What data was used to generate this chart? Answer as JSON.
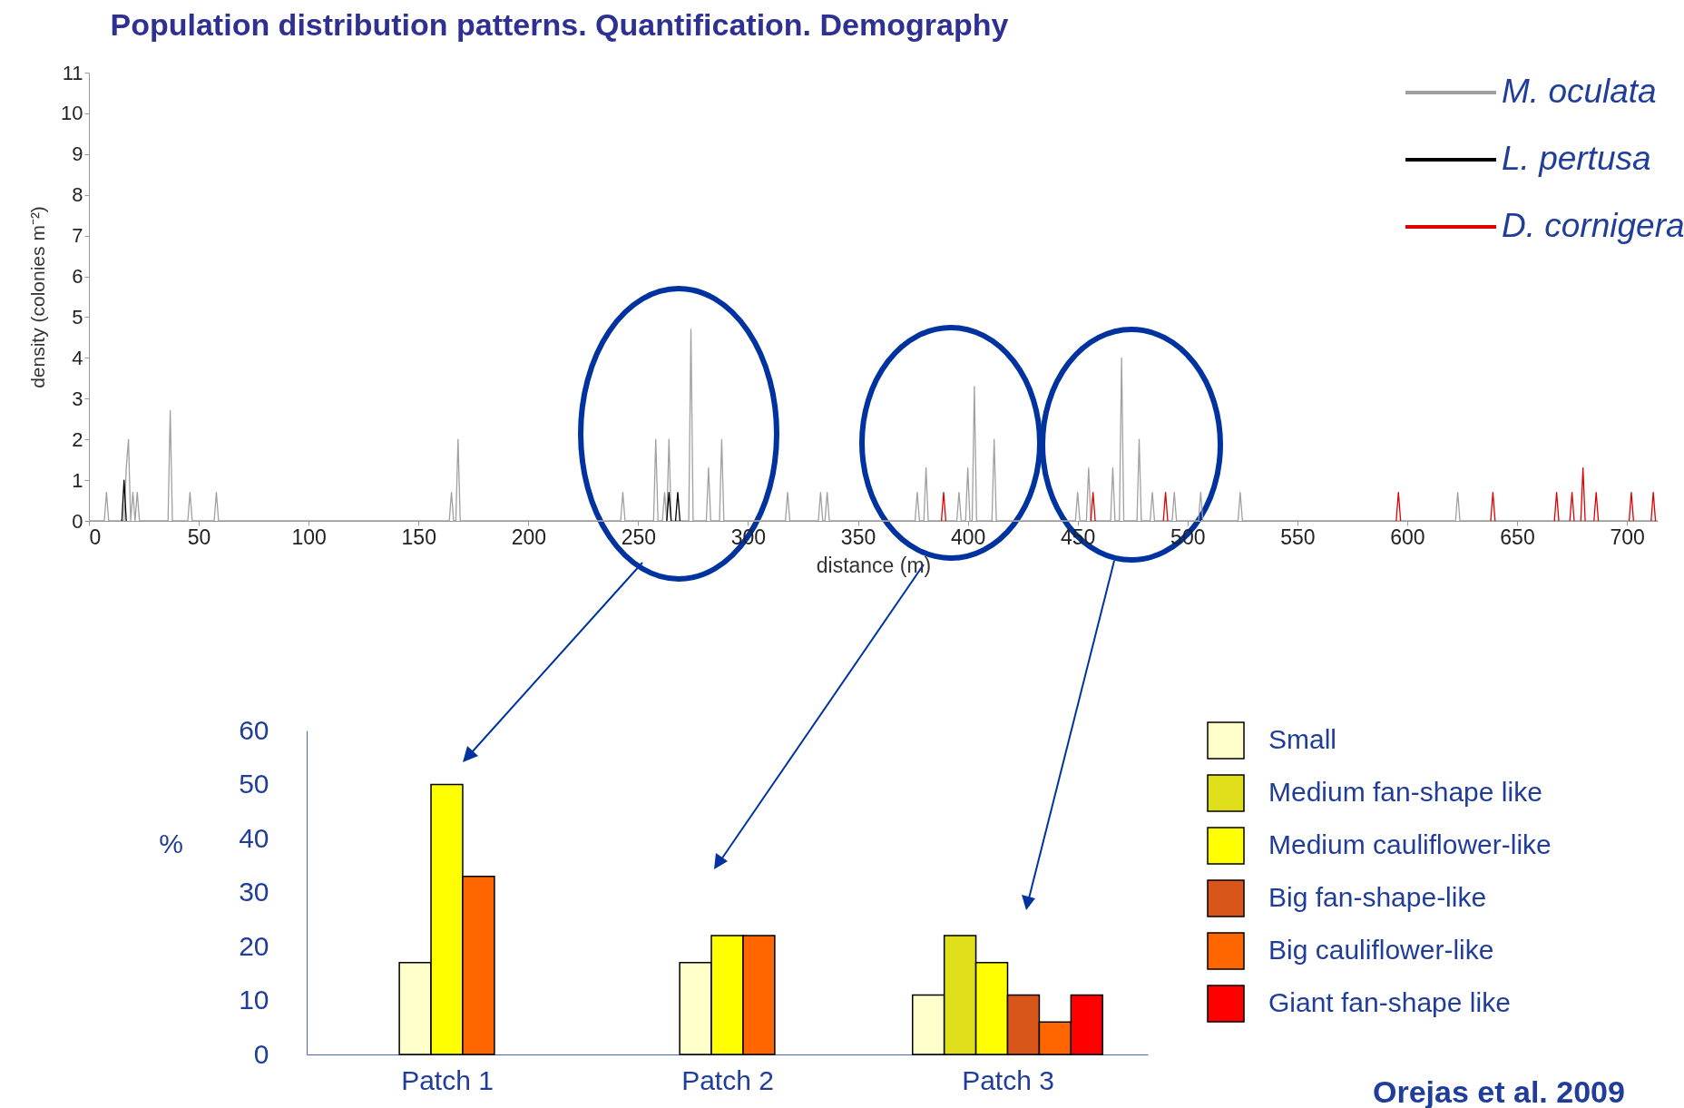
{
  "chart_data": [
    {
      "type": "line",
      "title": "Population distribution patterns. Quantification. Demography",
      "xlabel": "distance (m)",
      "ylabel": "density (colonies m⁻²)",
      "xlim": [
        0,
        714
      ],
      "xticks": [
        0,
        50,
        100,
        150,
        200,
        250,
        300,
        350,
        400,
        450,
        500,
        550,
        600,
        650,
        700
      ],
      "ylim": [
        0,
        11
      ],
      "yticks": [
        0,
        1,
        2,
        3,
        4,
        5,
        6,
        7,
        8,
        9,
        10,
        11
      ],
      "legend": "top right",
      "grid": false,
      "series": [
        {
          "name": "M. oculata",
          "color": "#a0a0a0",
          "x": [
            0,
            7,
            8,
            9,
            16,
            17,
            18,
            19,
            20,
            21,
            22,
            23,
            36,
            37,
            38,
            45,
            46,
            47,
            57,
            58,
            59,
            164,
            165,
            166,
            167,
            168,
            169,
            242,
            243,
            244,
            257,
            258,
            259,
            261,
            262,
            263,
            264,
            265,
            273,
            274,
            275,
            281,
            282,
            283,
            287,
            288,
            289,
            317,
            318,
            319,
            332,
            333,
            334,
            335,
            336,
            337,
            376,
            377,
            378,
            380,
            381,
            382,
            395,
            396,
            397,
            399,
            400,
            401,
            402,
            403,
            404,
            411,
            412,
            413,
            449,
            450,
            451,
            454,
            455,
            456,
            465,
            466,
            467,
            469,
            470,
            471,
            477,
            478,
            479,
            483,
            484,
            485,
            493,
            494,
            495,
            505,
            506,
            507,
            523,
            524,
            525,
            622,
            623,
            624,
            714
          ],
          "values": [
            0,
            0,
            0.7,
            0,
            0,
            1.3,
            2,
            0,
            0.7,
            0,
            0.7,
            0,
            0,
            2.7,
            0,
            0,
            0.7,
            0,
            0,
            0.7,
            0,
            0,
            0.7,
            0,
            0,
            2,
            0,
            0,
            0.7,
            0,
            0,
            2,
            0,
            0,
            0.7,
            0,
            2,
            0,
            0,
            4.7,
            0,
            0,
            1.3,
            0,
            0,
            2,
            0,
            0,
            0.7,
            0,
            0,
            0.7,
            0,
            0,
            0.7,
            0,
            0,
            0.7,
            0,
            0,
            1.3,
            0,
            0,
            0.7,
            0,
            0,
            1.3,
            0,
            0,
            3.3,
            0,
            0,
            2,
            0,
            0,
            0.7,
            0,
            0,
            1.3,
            0,
            0,
            1.3,
            0,
            0,
            4,
            0,
            0,
            2,
            0,
            0,
            0.7,
            0,
            0,
            0.7,
            0,
            0,
            0.7,
            0,
            0,
            0.7,
            0,
            0,
            0.7,
            0,
            0
          ]
        },
        {
          "name": "L. pertusa",
          "color": "#000000",
          "x": [
            15,
            16,
            17,
            100,
            263,
            264,
            265,
            266,
            267,
            268,
            269
          ],
          "values": [
            0,
            1,
            0,
            null,
            0,
            0.7,
            0,
            null,
            0,
            0.7,
            0
          ]
        },
        {
          "name": "D. cornigera",
          "color": "#e00000",
          "x": [
            388,
            389,
            390,
            420,
            456,
            457,
            458,
            470,
            489,
            490,
            491,
            550,
            595,
            596,
            597,
            620,
            638,
            639,
            640,
            650,
            667,
            668,
            669,
            671,
            674,
            675,
            676,
            677,
            679,
            680,
            681,
            683,
            685,
            686,
            687,
            690,
            701,
            702,
            703,
            707,
            711,
            712,
            713
          ],
          "values": [
            0,
            0.7,
            0,
            null,
            0,
            0.7,
            0,
            null,
            0,
            0.7,
            0,
            null,
            0,
            0.7,
            0,
            null,
            0,
            0.7,
            0,
            null,
            0,
            0.7,
            0,
            null,
            0,
            0.7,
            0,
            null,
            0,
            1.3,
            0,
            null,
            0,
            0.7,
            0,
            null,
            0,
            0.7,
            0,
            null,
            0,
            0.7,
            0
          ]
        }
      ]
    },
    {
      "type": "bar",
      "categories": [
        "Patch 1",
        "Patch 2",
        "Patch 3"
      ],
      "ylabel": "%",
      "ylim": [
        0,
        60
      ],
      "yticks": [
        0,
        10,
        20,
        30,
        40,
        50,
        60
      ],
      "legend": "right",
      "annotations": [
        "Orejas et al. 2009"
      ],
      "series": [
        {
          "name": "Small",
          "color": "#ffffcc",
          "values": [
            17,
            17,
            11
          ]
        },
        {
          "name": "Medium fan-shape like",
          "color": "#dede1a",
          "values": [
            null,
            null,
            22
          ]
        },
        {
          "name": "Medium cauliflower-like",
          "color": "#ffff00",
          "values": [
            50,
            22,
            17
          ]
        },
        {
          "name": "Big fan-shape-like",
          "color": "#d9561a",
          "values": [
            null,
            null,
            11
          ]
        },
        {
          "name": "Big cauliflower-like",
          "color": "#ff6600",
          "values": [
            33,
            22,
            6
          ]
        },
        {
          "name": "Giant fan-shape like",
          "color": "#ff0000",
          "values": [
            null,
            null,
            11
          ]
        }
      ]
    }
  ]
}
